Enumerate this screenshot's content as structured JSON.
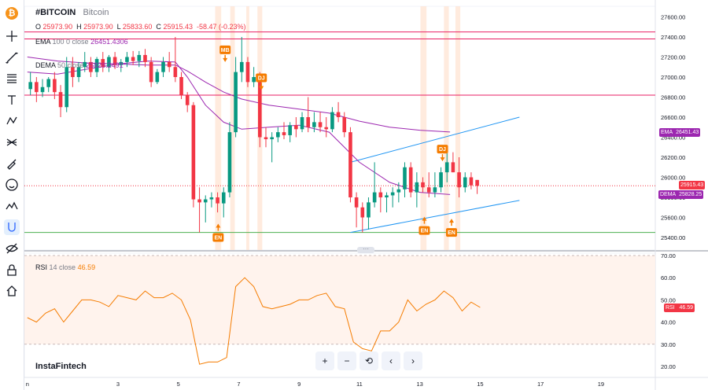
{
  "header": {
    "symbol": "#BITCOIN",
    "name": "Bitcoin",
    "ohlc": {
      "o_label": "O",
      "o": "25973.90",
      "h_label": "H",
      "h": "25973.90",
      "l_label": "L",
      "l": "25833.60",
      "c_label": "C",
      "c": "25915.43",
      "change": "-58.47 (-0.23%)"
    }
  },
  "indicators": {
    "ema": {
      "name": "EMA",
      "params": "100 0 close",
      "value": "26451.4306",
      "color": "#9c27b0"
    },
    "dema": {
      "name": "DEMA",
      "params": "50 close",
      "value": "25828.2491",
      "color": "#9c27b0"
    },
    "rsi": {
      "name": "RSI",
      "params": "14 close",
      "value": "46.59",
      "color": "#f57c00"
    }
  },
  "price_labels": {
    "ema": {
      "tag": "EMA",
      "value": "26451.43",
      "color": "#9c27b0"
    },
    "last": {
      "value": "25915.43",
      "color": "#f23645"
    },
    "dema": {
      "tag": "DEMA",
      "value": "25828.25",
      "color": "#9c27b0"
    },
    "rsi": {
      "tag": "RSI",
      "value": "46.59",
      "color": "#f23645"
    }
  },
  "annotations": [
    {
      "text": "MB",
      "kind": "down",
      "x": 6.55,
      "y": 27260
    },
    {
      "text": "DJ",
      "kind": "down",
      "x": 7.75,
      "y": 26980
    },
    {
      "text": "EN",
      "kind": "up",
      "x": 6.32,
      "y": 25490
    },
    {
      "text": "DJ",
      "kind": "down",
      "x": 13.75,
      "y": 26270
    },
    {
      "text": "EN",
      "kind": "up",
      "x": 13.15,
      "y": 25560
    },
    {
      "text": "EN",
      "kind": "up",
      "x": 14.05,
      "y": 25540
    }
  ],
  "toolbar": {
    "logo": "₿",
    "icons": [
      "crosshair-icon",
      "trend-line-icon",
      "fib-icon",
      "text-icon",
      "pattern-icon",
      "prediction-icon",
      "brush-icon",
      "emoji-icon",
      "measure-icon",
      "magnet-icon",
      "eye-hide-icon",
      "lock-icon",
      "home-icon"
    ]
  },
  "nav": {
    "zoom_in": "+",
    "zoom_out": "−",
    "reset": "⟲",
    "left": "‹",
    "right": "›"
  },
  "watermark": "InstaFintech",
  "chart_data": {
    "type": "candlestick",
    "price": {
      "ylim": [
        25300,
        27750
      ],
      "yticks": [
        "25400.00",
        "25600.00",
        "25800.00",
        "26000.00",
        "26200.00",
        "26400.00",
        "26600.00",
        "26800.00",
        "27000.00",
        "27200.00",
        "27400.00",
        "27600.00"
      ],
      "candles": [
        {
          "x": 0.1,
          "o": 26880,
          "h": 27050,
          "l": 26820,
          "c": 26950
        },
        {
          "x": 0.3,
          "o": 26950,
          "h": 27000,
          "l": 26750,
          "c": 26850
        },
        {
          "x": 0.5,
          "o": 26850,
          "h": 26980,
          "l": 26800,
          "c": 26900
        },
        {
          "x": 0.7,
          "o": 26900,
          "h": 27000,
          "l": 26850,
          "c": 26980
        },
        {
          "x": 0.9,
          "o": 26980,
          "h": 27050,
          "l": 26780,
          "c": 26850
        },
        {
          "x": 1.1,
          "o": 26850,
          "h": 26920,
          "l": 26600,
          "c": 26700
        },
        {
          "x": 1.3,
          "o": 26700,
          "h": 27200,
          "l": 26650,
          "c": 27100
        },
        {
          "x": 1.5,
          "o": 27100,
          "h": 27200,
          "l": 26900,
          "c": 27000
        },
        {
          "x": 1.7,
          "o": 27000,
          "h": 27150,
          "l": 26950,
          "c": 27100
        },
        {
          "x": 1.9,
          "o": 27100,
          "h": 27250,
          "l": 27050,
          "c": 27150
        },
        {
          "x": 2.1,
          "o": 27150,
          "h": 27200,
          "l": 27000,
          "c": 27050
        },
        {
          "x": 2.3,
          "o": 27050,
          "h": 27200,
          "l": 27000,
          "c": 27180
        },
        {
          "x": 2.5,
          "o": 27180,
          "h": 27250,
          "l": 27050,
          "c": 27100
        },
        {
          "x": 2.7,
          "o": 27100,
          "h": 27220,
          "l": 27050,
          "c": 27200
        },
        {
          "x": 2.9,
          "o": 27200,
          "h": 27250,
          "l": 27080,
          "c": 27120
        },
        {
          "x": 3.1,
          "o": 27120,
          "h": 27180,
          "l": 27050,
          "c": 27150
        },
        {
          "x": 3.3,
          "o": 27150,
          "h": 27250,
          "l": 27100,
          "c": 27200
        },
        {
          "x": 3.5,
          "o": 27200,
          "h": 27260,
          "l": 27120,
          "c": 27160
        },
        {
          "x": 3.7,
          "o": 27160,
          "h": 27260,
          "l": 27100,
          "c": 27220
        },
        {
          "x": 3.9,
          "o": 27220,
          "h": 27280,
          "l": 27100,
          "c": 27150
        },
        {
          "x": 4.1,
          "o": 27150,
          "h": 27200,
          "l": 26900,
          "c": 26950
        },
        {
          "x": 4.3,
          "o": 26950,
          "h": 27080,
          "l": 26930,
          "c": 27050
        },
        {
          "x": 4.5,
          "o": 27050,
          "h": 27200,
          "l": 27000,
          "c": 27150
        },
        {
          "x": 4.7,
          "o": 27150,
          "h": 27250,
          "l": 27050,
          "c": 27100
        },
        {
          "x": 4.9,
          "o": 27100,
          "h": 27400,
          "l": 26950,
          "c": 27000
        },
        {
          "x": 5.1,
          "o": 27000,
          "h": 27050,
          "l": 26780,
          "c": 26820
        },
        {
          "x": 5.3,
          "o": 26820,
          "h": 26850,
          "l": 26650,
          "c": 26720
        },
        {
          "x": 5.5,
          "o": 26720,
          "h": 26750,
          "l": 25700,
          "c": 25780
        },
        {
          "x": 5.7,
          "o": 25780,
          "h": 25900,
          "l": 25450,
          "c": 25750
        },
        {
          "x": 5.9,
          "o": 25750,
          "h": 25820,
          "l": 25550,
          "c": 25780
        },
        {
          "x": 6.1,
          "o": 25780,
          "h": 25850,
          "l": 25700,
          "c": 25800
        },
        {
          "x": 6.3,
          "o": 25800,
          "h": 25850,
          "l": 25650,
          "c": 25740
        },
        {
          "x": 6.5,
          "o": 25740,
          "h": 25900,
          "l": 25600,
          "c": 25850
        },
        {
          "x": 6.7,
          "o": 25850,
          "h": 26550,
          "l": 25800,
          "c": 26450
        },
        {
          "x": 6.9,
          "o": 26450,
          "h": 27200,
          "l": 26400,
          "c": 27050
        },
        {
          "x": 7.1,
          "o": 27050,
          "h": 27400,
          "l": 26950,
          "c": 27150
        },
        {
          "x": 7.3,
          "o": 27150,
          "h": 27200,
          "l": 26900,
          "c": 26950
        },
        {
          "x": 7.5,
          "o": 26950,
          "h": 27100,
          "l": 26900,
          "c": 27000
        },
        {
          "x": 7.7,
          "o": 27000,
          "h": 27050,
          "l": 26300,
          "c": 26400
        },
        {
          "x": 7.9,
          "o": 26400,
          "h": 26500,
          "l": 26300,
          "c": 26380
        },
        {
          "x": 8.1,
          "o": 26380,
          "h": 26450,
          "l": 26150,
          "c": 26400
        },
        {
          "x": 8.3,
          "o": 26400,
          "h": 26500,
          "l": 26350,
          "c": 26450
        },
        {
          "x": 8.5,
          "o": 26450,
          "h": 26550,
          "l": 26380,
          "c": 26420
        },
        {
          "x": 8.7,
          "o": 26420,
          "h": 26550,
          "l": 26350,
          "c": 26520
        },
        {
          "x": 8.9,
          "o": 26520,
          "h": 26600,
          "l": 26400,
          "c": 26480
        },
        {
          "x": 9.1,
          "o": 26480,
          "h": 26650,
          "l": 26450,
          "c": 26600
        },
        {
          "x": 9.3,
          "o": 26600,
          "h": 26800,
          "l": 26450,
          "c": 26500
        },
        {
          "x": 9.5,
          "o": 26500,
          "h": 26650,
          "l": 26450,
          "c": 26550
        },
        {
          "x": 9.7,
          "o": 26550,
          "h": 26650,
          "l": 26450,
          "c": 26500
        },
        {
          "x": 9.9,
          "o": 26500,
          "h": 26600,
          "l": 26400,
          "c": 26480
        },
        {
          "x": 10.1,
          "o": 26480,
          "h": 26700,
          "l": 26450,
          "c": 26650
        },
        {
          "x": 10.3,
          "o": 26650,
          "h": 26750,
          "l": 26550,
          "c": 26600
        },
        {
          "x": 10.5,
          "o": 26600,
          "h": 26650,
          "l": 26400,
          "c": 26450
        },
        {
          "x": 10.7,
          "o": 26450,
          "h": 26500,
          "l": 25750,
          "c": 25800
        },
        {
          "x": 10.9,
          "o": 25800,
          "h": 25850,
          "l": 25500,
          "c": 25700
        },
        {
          "x": 11.1,
          "o": 25700,
          "h": 25750,
          "l": 25450,
          "c": 25600
        },
        {
          "x": 11.3,
          "o": 25600,
          "h": 25800,
          "l": 25480,
          "c": 25750
        },
        {
          "x": 11.5,
          "o": 25750,
          "h": 26150,
          "l": 25700,
          "c": 25850
        },
        {
          "x": 11.7,
          "o": 25850,
          "h": 25900,
          "l": 25650,
          "c": 25800
        },
        {
          "x": 11.9,
          "o": 25800,
          "h": 25850,
          "l": 25650,
          "c": 25820
        },
        {
          "x": 12.1,
          "o": 25820,
          "h": 25900,
          "l": 25700,
          "c": 25850
        },
        {
          "x": 12.3,
          "o": 25850,
          "h": 25950,
          "l": 25750,
          "c": 25880
        },
        {
          "x": 12.5,
          "o": 25880,
          "h": 26150,
          "l": 25800,
          "c": 26100
        },
        {
          "x": 12.7,
          "o": 26100,
          "h": 26150,
          "l": 25800,
          "c": 25850
        },
        {
          "x": 12.9,
          "o": 25850,
          "h": 26050,
          "l": 25700,
          "c": 25950
        },
        {
          "x": 13.1,
          "o": 25950,
          "h": 26000,
          "l": 25850,
          "c": 25900
        },
        {
          "x": 13.3,
          "o": 25900,
          "h": 26050,
          "l": 25800,
          "c": 25850
        },
        {
          "x": 13.5,
          "o": 25850,
          "h": 26050,
          "l": 25800,
          "c": 25900
        },
        {
          "x": 13.7,
          "o": 25900,
          "h": 26100,
          "l": 25850,
          "c": 26050
        },
        {
          "x": 13.9,
          "o": 26050,
          "h": 26250,
          "l": 25950,
          "c": 26150
        },
        {
          "x": 14.1,
          "o": 26150,
          "h": 26250,
          "l": 26050,
          "c": 26050
        },
        {
          "x": 14.3,
          "o": 26050,
          "h": 26200,
          "l": 25800,
          "c": 25900
        },
        {
          "x": 14.5,
          "o": 25900,
          "h": 26050,
          "l": 25850,
          "c": 26000
        },
        {
          "x": 14.7,
          "o": 26000,
          "h": 26050,
          "l": 25880,
          "c": 25920
        },
        {
          "x": 14.9,
          "o": 25973.9,
          "h": 25973.9,
          "l": 25833.6,
          "c": 25915.43
        }
      ],
      "ema": [
        [
          0,
          27200
        ],
        [
          1,
          27160
        ],
        [
          2,
          27140
        ],
        [
          3,
          27130
        ],
        [
          4,
          27120
        ],
        [
          4.9,
          27120
        ],
        [
          5.3,
          27060
        ],
        [
          5.9,
          26950
        ],
        [
          6.5,
          26850
        ],
        [
          7.1,
          26780
        ],
        [
          8,
          26720
        ],
        [
          9,
          26680
        ],
        [
          10,
          26640
        ],
        [
          11,
          26560
        ],
        [
          12,
          26500
        ],
        [
          13,
          26470
        ],
        [
          14,
          26451.43
        ]
      ],
      "dema": [
        [
          0,
          27050
        ],
        [
          1,
          27030
        ],
        [
          2,
          27080
        ],
        [
          3,
          27130
        ],
        [
          4,
          27160
        ],
        [
          4.9,
          27150
        ],
        [
          5.3,
          27000
        ],
        [
          5.9,
          26720
        ],
        [
          6.5,
          26550
        ],
        [
          7.1,
          26480
        ],
        [
          8,
          26500
        ],
        [
          9,
          26520
        ],
        [
          10,
          26450
        ],
        [
          11,
          26150
        ],
        [
          12,
          25950
        ],
        [
          13,
          25850
        ],
        [
          14,
          25828.25
        ]
      ],
      "hlines": [
        {
          "y": 27450,
          "color": "#e91e63"
        },
        {
          "y": 27380,
          "color": "#e91e63"
        },
        {
          "y": 26820,
          "color": "#e91e63"
        },
        {
          "y": 25450,
          "color": "#4caf50"
        }
      ],
      "channel": [
        {
          "from": [
            10.7,
            25450
          ],
          "to": [
            16.3,
            25770
          ]
        },
        {
          "from": [
            10.7,
            26150
          ],
          "to": [
            16.3,
            26600
          ]
        }
      ],
      "shaded": [
        [
          6.22,
          6.42
        ],
        [
          6.72,
          6.87
        ],
        [
          7.25,
          7.35
        ],
        [
          7.62,
          7.78
        ],
        [
          13.02,
          13.22
        ],
        [
          13.8,
          13.96
        ],
        [
          14.18,
          14.34
        ]
      ]
    },
    "rsi": {
      "ylim": [
        15,
        75
      ],
      "yticks": [
        "20.00",
        "30.00",
        "40.00",
        "50.00",
        "60.00",
        "70.00"
      ],
      "levels": [
        70,
        30
      ],
      "values": [
        [
          0,
          42
        ],
        [
          0.3,
          40
        ],
        [
          0.6,
          44
        ],
        [
          0.9,
          46
        ],
        [
          1.2,
          40
        ],
        [
          1.5,
          45
        ],
        [
          1.8,
          50
        ],
        [
          2.1,
          50
        ],
        [
          2.4,
          49
        ],
        [
          2.7,
          47
        ],
        [
          3,
          52
        ],
        [
          3.3,
          51
        ],
        [
          3.6,
          50
        ],
        [
          3.9,
          54
        ],
        [
          4.2,
          51
        ],
        [
          4.5,
          51
        ],
        [
          4.8,
          53
        ],
        [
          5.1,
          50
        ],
        [
          5.4,
          41
        ],
        [
          5.7,
          21
        ],
        [
          6,
          22
        ],
        [
          6.3,
          22
        ],
        [
          6.6,
          24
        ],
        [
          6.9,
          56
        ],
        [
          7.2,
          60
        ],
        [
          7.5,
          56
        ],
        [
          7.8,
          47
        ],
        [
          8.1,
          46
        ],
        [
          8.4,
          47
        ],
        [
          8.7,
          48
        ],
        [
          9,
          50
        ],
        [
          9.3,
          50
        ],
        [
          9.6,
          52
        ],
        [
          9.9,
          53
        ],
        [
          10.2,
          47
        ],
        [
          10.5,
          46
        ],
        [
          10.8,
          31
        ],
        [
          11.1,
          28
        ],
        [
          11.4,
          27
        ],
        [
          11.7,
          36
        ],
        [
          12,
          36
        ],
        [
          12.3,
          40
        ],
        [
          12.6,
          50
        ],
        [
          12.9,
          45
        ],
        [
          13.2,
          48
        ],
        [
          13.5,
          50
        ],
        [
          13.8,
          54
        ],
        [
          14.1,
          51
        ],
        [
          14.4,
          45
        ],
        [
          14.7,
          49
        ],
        [
          15,
          46.59
        ]
      ]
    },
    "x_ticks": [
      {
        "x": 0,
        "label": "n"
      },
      {
        "x": 3,
        "label": "3"
      },
      {
        "x": 5,
        "label": "5"
      },
      {
        "x": 7,
        "label": "7"
      },
      {
        "x": 9,
        "label": "9"
      },
      {
        "x": 11,
        "label": "11"
      },
      {
        "x": 13,
        "label": "13"
      },
      {
        "x": 15,
        "label": "15"
      },
      {
        "x": 17,
        "label": "17"
      },
      {
        "x": 19,
        "label": "19"
      }
    ],
    "xlim": [
      -0.1,
      20.8
    ],
    "up_color": "#089981",
    "down_color": "#f23645"
  }
}
